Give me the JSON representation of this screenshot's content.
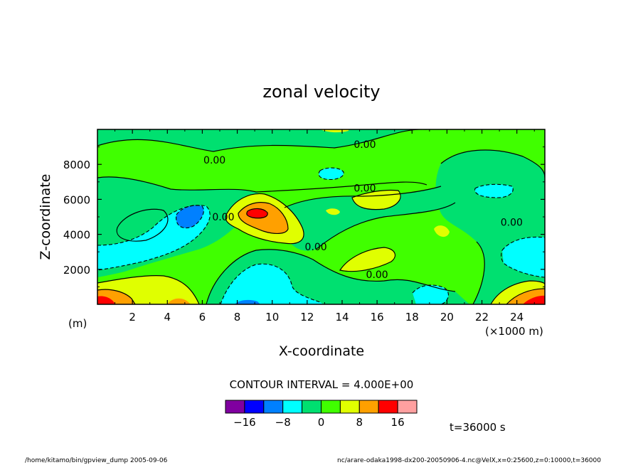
{
  "chart_data": {
    "type": "contour",
    "title": "zonal velocity",
    "xlabel": "X-coordinate",
    "ylabel": "Z-coordinate",
    "x_units_note": "(×1000 m)",
    "y_units_note": "(m)",
    "xlim": [
      0,
      25.6
    ],
    "ylim": [
      0,
      10000
    ],
    "xticks": [
      2,
      4,
      6,
      8,
      10,
      12,
      14,
      16,
      18,
      20,
      22,
      24
    ],
    "yticks": [
      2000,
      4000,
      6000,
      8000
    ],
    "contour_interval_text": "CONTOUR INTERVAL = 4.000E+00",
    "contour_labels": [
      {
        "text": "0.00",
        "x": 6.7,
        "y": 8250
      },
      {
        "text": "0.00",
        "x": 15.3,
        "y": 9150
      },
      {
        "text": "0.00",
        "x": 15.3,
        "y": 6650
      },
      {
        "text": "0.00",
        "x": 7.2,
        "y": 5000
      },
      {
        "text": "0.00",
        "x": 12.5,
        "y": 3300
      },
      {
        "text": "0.00",
        "x": 16.0,
        "y": 1700
      },
      {
        "text": "0.00",
        "x": 23.7,
        "y": 4700
      }
    ],
    "levels": [
      -20,
      -16,
      -12,
      -8,
      -4,
      0,
      4,
      8,
      12,
      16,
      20
    ],
    "colors": [
      "#8000a0",
      "#0000ff",
      "#0080ff",
      "#00ffff",
      "#00e070",
      "#40ff00",
      "#e0ff00",
      "#ffa000",
      "#ff0000",
      "#ffa0a0"
    ],
    "colorbar_ticks": [
      {
        "label": "−16",
        "value": -16
      },
      {
        "label": "−8",
        "value": -8
      },
      {
        "label": "0",
        "value": 0
      },
      {
        "label": "8",
        "value": 8
      },
      {
        "label": "16",
        "value": 16
      }
    ],
    "time_label": "t=36000 s"
  },
  "footer": {
    "left": "/home/kitamo/bin/gpview_dump   2005-09-06",
    "right": "nc/arare-odaka1998-dx200-20050906-4.nc@VelX,x=0:25600,z=0:10000,t=36000"
  }
}
